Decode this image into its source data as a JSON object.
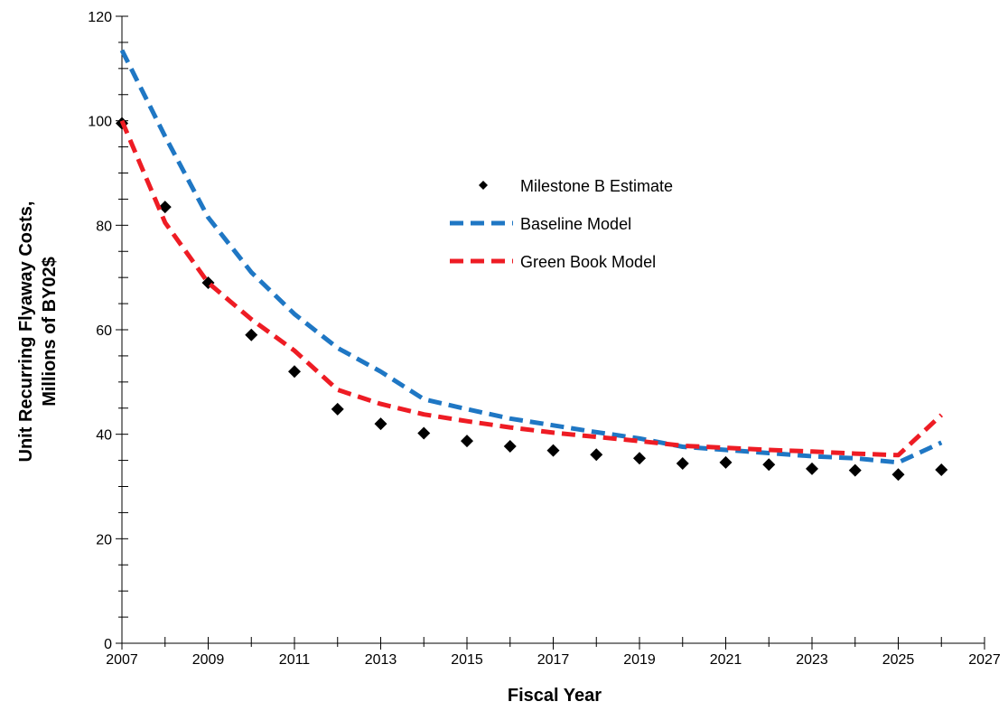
{
  "chart_data": {
    "type": "line",
    "title": "",
    "xlabel": "Fiscal Year",
    "ylabel_lines": [
      "Unit Recurring Flyaway Costs,",
      "Millions of BY02$"
    ],
    "xlim": [
      2007,
      2027
    ],
    "ylim": [
      0,
      120
    ],
    "x_ticks": [
      2007,
      2009,
      2011,
      2013,
      2015,
      2017,
      2019,
      2021,
      2023,
      2025,
      2027
    ],
    "y_ticks": [
      0,
      20,
      40,
      60,
      80,
      100,
      120
    ],
    "grid": false,
    "legend_position": "center-right",
    "series": [
      {
        "name": "Milestone B Estimate",
        "style": "markers",
        "marker": "diamond",
        "color": "#000000",
        "x": [
          2007,
          2008,
          2009,
          2010,
          2011,
          2012,
          2013,
          2014,
          2015,
          2016,
          2017,
          2018,
          2019,
          2020,
          2021,
          2022,
          2023,
          2024,
          2025,
          2026
        ],
        "values": [
          99.5,
          83.5,
          69,
          59,
          52,
          44.8,
          42,
          40.2,
          38.7,
          37.7,
          36.9,
          36.1,
          35.4,
          34.4,
          34.6,
          34.2,
          33.4,
          33.1,
          32.3,
          33.2
        ]
      },
      {
        "name": "Baseline Model",
        "style": "dashed",
        "color": "#1f77c4",
        "x": [
          2007,
          2008,
          2009,
          2010,
          2011,
          2012,
          2013,
          2014,
          2015,
          2016,
          2017,
          2018,
          2019,
          2020,
          2021,
          2022,
          2023,
          2024,
          2025,
          2026
        ],
        "values": [
          113.5,
          97,
          81.5,
          71,
          63,
          56.5,
          52,
          46.7,
          44.8,
          43,
          41.7,
          40.4,
          39.2,
          37.6,
          37,
          36.4,
          35.8,
          35.4,
          34.6,
          38.4
        ]
      },
      {
        "name": "Green Book Model",
        "style": "dashed",
        "color": "#ee1c24",
        "x": [
          2007,
          2008,
          2009,
          2010,
          2011,
          2012,
          2013,
          2014,
          2015,
          2016,
          2017,
          2018,
          2019,
          2020,
          2021,
          2022,
          2023,
          2024,
          2025,
          2026
        ],
        "values": [
          100,
          80.5,
          69,
          62,
          56,
          48.5,
          45.8,
          43.8,
          42.5,
          41.3,
          40.3,
          39.5,
          38.7,
          37.8,
          37.4,
          37,
          36.7,
          36.3,
          36,
          43.7
        ]
      }
    ]
  }
}
